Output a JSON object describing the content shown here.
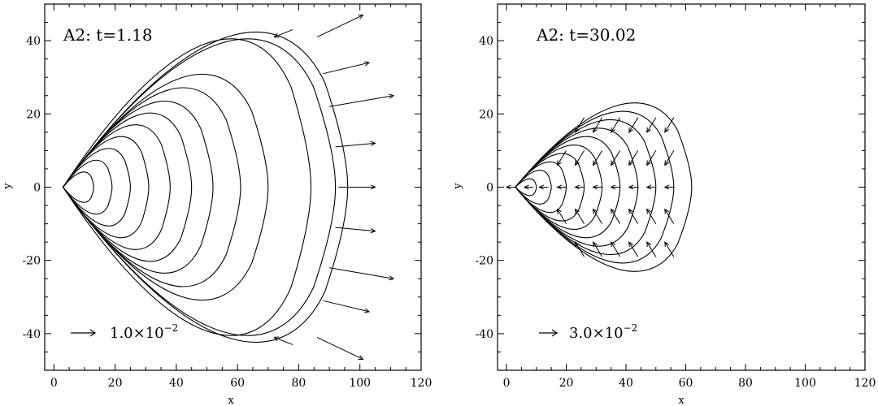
{
  "chart_data": [
    {
      "type": "vector-contour",
      "annotation": "A2: t=1.18",
      "xlabel": "x",
      "ylabel": "y",
      "xlim": [
        -3,
        120
      ],
      "ylim": [
        -50,
        50
      ],
      "xticks": [
        "0",
        "20",
        "40",
        "60",
        "80",
        "100",
        "120"
      ],
      "yticks": [
        "-40",
        "-20",
        "0",
        "20",
        "40"
      ],
      "xtick_values": [
        0,
        20,
        40,
        60,
        80,
        100,
        120
      ],
      "ytick_values": [
        -40,
        -20,
        0,
        20,
        40
      ],
      "apex": [
        3,
        0
      ],
      "contours": [
        {
          "tip": 13,
          "halfheight": 4.5
        },
        {
          "tip": 19,
          "halfheight": 8
        },
        {
          "tip": 25,
          "halfheight": 11.5
        },
        {
          "tip": 31,
          "halfheight": 15
        },
        {
          "tip": 38,
          "halfheight": 18.5
        },
        {
          "tip": 45,
          "halfheight": 22
        },
        {
          "tip": 52,
          "halfheight": 25.5
        },
        {
          "tip": 61,
          "halfheight": 29.5
        },
        {
          "tip": 70,
          "halfheight": 33.5
        },
        {
          "tip": 84,
          "halfheight": 44
        },
        {
          "tip": 92,
          "halfheight": 44
        },
        {
          "tip": 96,
          "halfheight": 46
        }
      ],
      "vectors": [
        {
          "x": 93,
          "y": 0,
          "dx": 12,
          "dy": 0
        },
        {
          "x": 92,
          "y": 11,
          "dx": 13,
          "dy": 1
        },
        {
          "x": 92,
          "y": -11,
          "dx": 13,
          "dy": -1
        },
        {
          "x": 90,
          "y": 22,
          "dx": 21,
          "dy": 3
        },
        {
          "x": 90,
          "y": -22,
          "dx": 21,
          "dy": -3
        },
        {
          "x": 88,
          "y": 31,
          "dx": 15,
          "dy": 3
        },
        {
          "x": 88,
          "y": -31,
          "dx": 15,
          "dy": -3
        },
        {
          "x": 86,
          "y": 41,
          "dx": 15,
          "dy": 6
        },
        {
          "x": 86,
          "y": -41,
          "dx": 15,
          "dy": -6
        },
        {
          "x": 78,
          "y": 43,
          "dx": -6,
          "dy": -2
        },
        {
          "x": 78,
          "y": -43,
          "dx": -6,
          "dy": 2
        }
      ],
      "scale_arrow_label_base": "1.0×10",
      "scale_arrow_label_exp": "−2"
    },
    {
      "type": "vector-contour",
      "annotation": "A2: t=30.02",
      "xlabel": "x",
      "ylabel": "y",
      "xlim": [
        -3,
        120
      ],
      "ylim": [
        -50,
        50
      ],
      "xticks": [
        "0",
        "20",
        "40",
        "60",
        "80",
        "100",
        "120"
      ],
      "yticks": [
        "-40",
        "-20",
        "0",
        "20",
        "40"
      ],
      "xtick_values": [
        0,
        20,
        40,
        60,
        80,
        100,
        120
      ],
      "ytick_values": [
        -40,
        -20,
        0,
        20,
        40
      ],
      "apex": [
        3,
        0
      ],
      "contours": [
        {
          "tip": 10,
          "halfheight": 2.5
        },
        {
          "tip": 15,
          "halfheight": 5
        },
        {
          "tip": 20,
          "halfheight": 7.5
        },
        {
          "tip": 26,
          "halfheight": 10
        },
        {
          "tip": 32,
          "halfheight": 12.5
        },
        {
          "tip": 38,
          "halfheight": 15
        },
        {
          "tip": 44,
          "halfheight": 17.5
        },
        {
          "tip": 50,
          "halfheight": 20
        },
        {
          "tip": 56,
          "halfheight": 22.5
        },
        {
          "tip": 62,
          "halfheight": 25
        }
      ],
      "vectors": [
        {
          "x": 56,
          "y": 0,
          "dx": -3,
          "dy": 0
        },
        {
          "x": 50,
          "y": 0,
          "dx": -3,
          "dy": 0
        },
        {
          "x": 44,
          "y": 0,
          "dx": -3,
          "dy": 0
        },
        {
          "x": 38,
          "y": 0,
          "dx": -3,
          "dy": 0
        },
        {
          "x": 32,
          "y": 0,
          "dx": -3,
          "dy": 0
        },
        {
          "x": 26,
          "y": 0,
          "dx": -3,
          "dy": 0
        },
        {
          "x": 20,
          "y": 0,
          "dx": -3,
          "dy": 0
        },
        {
          "x": 14,
          "y": 0,
          "dx": -3,
          "dy": 0
        },
        {
          "x": 9,
          "y": 0,
          "dx": -3,
          "dy": 0
        },
        {
          "x": 3,
          "y": 0,
          "dx": -3,
          "dy": 0
        },
        {
          "x": 56,
          "y": 19,
          "dx": -3,
          "dy": -4
        },
        {
          "x": 50,
          "y": 19,
          "dx": -3,
          "dy": -4
        },
        {
          "x": 44,
          "y": 19,
          "dx": -3,
          "dy": -4
        },
        {
          "x": 38,
          "y": 19,
          "dx": -3,
          "dy": -4
        },
        {
          "x": 32,
          "y": 19,
          "dx": -3,
          "dy": -4
        },
        {
          "x": 26,
          "y": 19,
          "dx": -3,
          "dy": -4
        },
        {
          "x": 56,
          "y": 10,
          "dx": -3,
          "dy": -4
        },
        {
          "x": 50,
          "y": 10,
          "dx": -3,
          "dy": -4
        },
        {
          "x": 44,
          "y": 10,
          "dx": -3,
          "dy": -4
        },
        {
          "x": 38,
          "y": 10,
          "dx": -3,
          "dy": -4
        },
        {
          "x": 32,
          "y": 10,
          "dx": -3,
          "dy": -4
        },
        {
          "x": 26,
          "y": 10,
          "dx": -3,
          "dy": -4
        },
        {
          "x": 20,
          "y": 10,
          "dx": -3,
          "dy": -4
        },
        {
          "x": 56,
          "y": -10,
          "dx": -3,
          "dy": 4
        },
        {
          "x": 50,
          "y": -10,
          "dx": -3,
          "dy": 4
        },
        {
          "x": 44,
          "y": -10,
          "dx": -3,
          "dy": 4
        },
        {
          "x": 38,
          "y": -10,
          "dx": -3,
          "dy": 4
        },
        {
          "x": 32,
          "y": -10,
          "dx": -3,
          "dy": 4
        },
        {
          "x": 26,
          "y": -10,
          "dx": -3,
          "dy": 4
        },
        {
          "x": 20,
          "y": -10,
          "dx": -3,
          "dy": 4
        },
        {
          "x": 56,
          "y": -19,
          "dx": -3,
          "dy": 4
        },
        {
          "x": 50,
          "y": -19,
          "dx": -3,
          "dy": 4
        },
        {
          "x": 44,
          "y": -19,
          "dx": -3,
          "dy": 4
        },
        {
          "x": 38,
          "y": -19,
          "dx": -3,
          "dy": 4
        },
        {
          "x": 32,
          "y": -19,
          "dx": -3,
          "dy": 4
        },
        {
          "x": 26,
          "y": -19,
          "dx": -3,
          "dy": 4
        }
      ],
      "scale_arrow_label_base": "3.0×10",
      "scale_arrow_label_exp": "−2"
    }
  ]
}
